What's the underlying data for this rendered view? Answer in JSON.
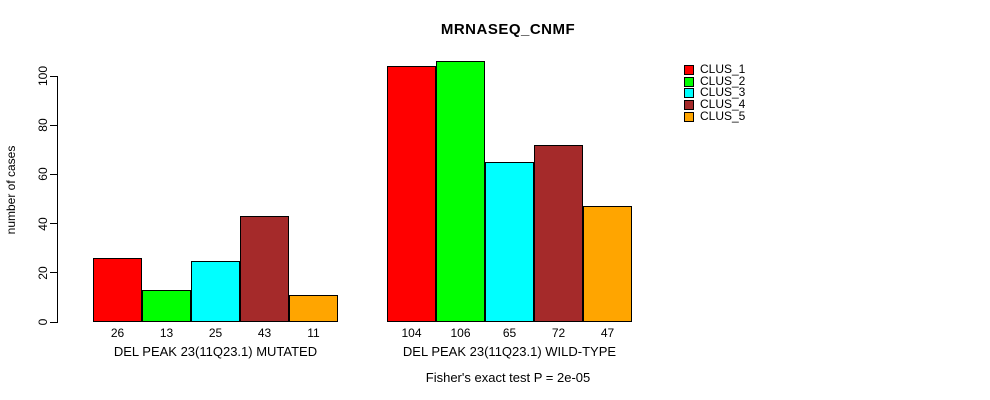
{
  "chart_data": {
    "type": "bar",
    "title": "MRNASEQ_CNMF",
    "ylabel": "number of cases",
    "ylim": [
      0,
      100
    ],
    "yticks": [
      0,
      20,
      40,
      60,
      80,
      100
    ],
    "grid": false,
    "legend_position": "right-outside",
    "categories": [
      "DEL PEAK 23(11Q23.1) MUTATED",
      "DEL PEAK 23(11Q23.1) WILD-TYPE"
    ],
    "series": [
      {
        "name": "CLUS_1",
        "color": "#FF0000",
        "values": [
          26,
          104
        ]
      },
      {
        "name": "CLUS_2",
        "color": "#00FF00",
        "values": [
          13,
          106
        ]
      },
      {
        "name": "CLUS_3",
        "color": "#00FFFF",
        "values": [
          25,
          65
        ]
      },
      {
        "name": "CLUS_4",
        "color": "#A52A2A",
        "values": [
          43,
          72
        ]
      },
      {
        "name": "CLUS_5",
        "color": "#FFA500",
        "values": [
          11,
          47
        ]
      }
    ],
    "bar_value_labels": [
      [
        "26",
        "13",
        "25",
        "43",
        "11"
      ],
      [
        "104",
        "106",
        "65",
        "72",
        "47"
      ]
    ],
    "footnote": "Fisher's exact test P = 2e-05"
  }
}
